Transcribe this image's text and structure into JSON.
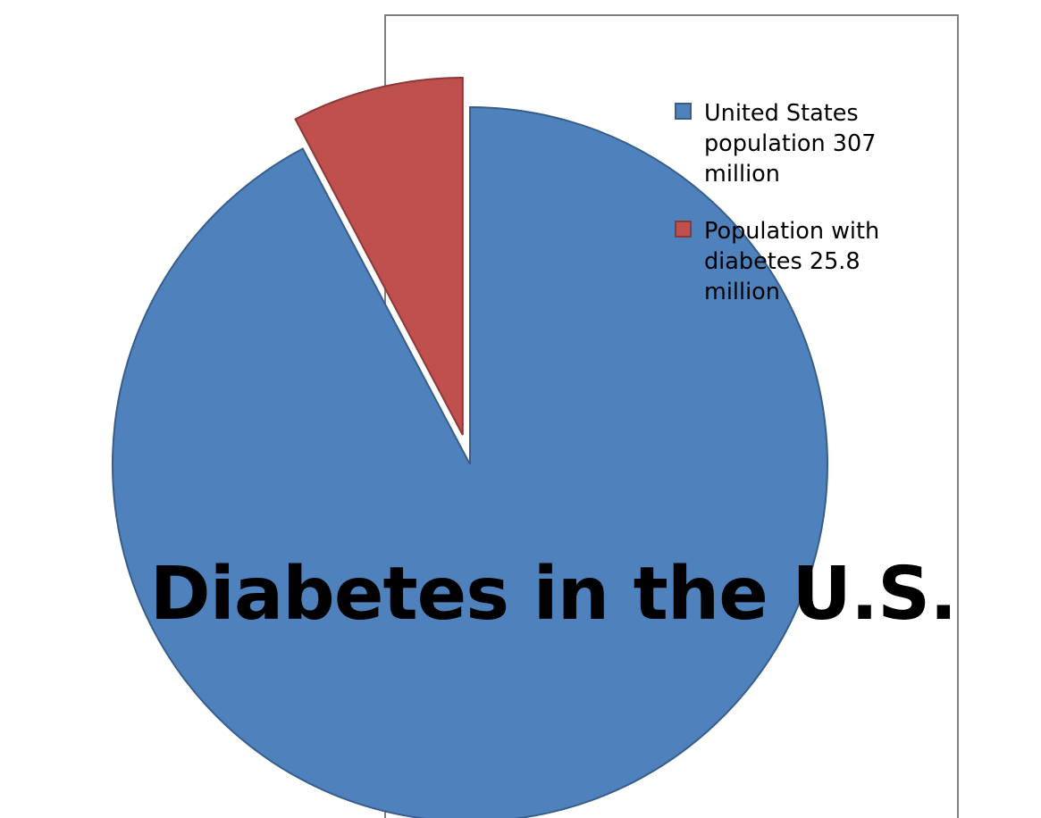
{
  "background_text": [
    "n",
    "-"
  ],
  "chart_data": {
    "type": "pie",
    "title": "Diabetes in the U.S.",
    "exploded_slice": 1,
    "legend_position": "right",
    "slices": [
      {
        "name": "United States\npopulation 307\nmillion",
        "value": 307,
        "color": "#4f81bd",
        "stroke": "#385d8a"
      },
      {
        "name": "Population with\ndiabetes 25.8\nmillion",
        "value": 25.8,
        "color": "#c0504d",
        "stroke": "#8c3836"
      }
    ]
  }
}
